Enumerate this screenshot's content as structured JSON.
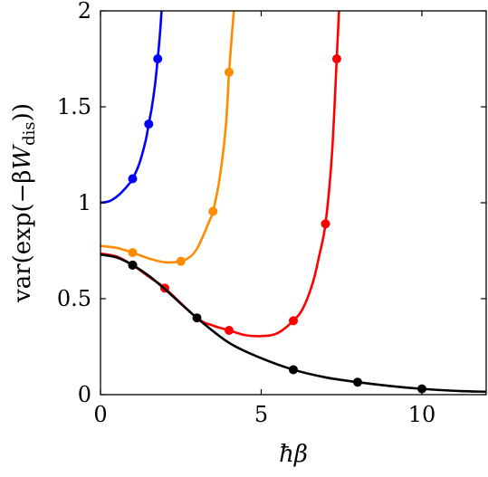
{
  "chart_data": {
    "type": "line",
    "xlabel": "ħβ",
    "ylabel": "var(exp(−βW_dis))",
    "ylabel_parts": {
      "prefix": "var(exp(−β",
      "var": "W",
      "sub": "dis",
      "suffix": "))"
    },
    "xlim": [
      0,
      12
    ],
    "ylim": [
      0,
      2
    ],
    "xticks": [
      0,
      5,
      10
    ],
    "xtick_labels": [
      "0",
      "5",
      "10"
    ],
    "yticks": [
      0,
      0.5,
      1,
      1.5,
      2
    ],
    "ytick_labels": [
      "0",
      "0.5",
      "1",
      "1.5",
      "2"
    ],
    "grid": false,
    "legend": "none",
    "series": [
      {
        "color": "#0000ff",
        "curve": [
          [
            0,
            1.0
          ],
          [
            0.3,
            1.01
          ],
          [
            0.6,
            1.045
          ],
          [
            0.9,
            1.1
          ],
          [
            1.0,
            1.125
          ],
          [
            1.2,
            1.2
          ],
          [
            1.4,
            1.32
          ],
          [
            1.5,
            1.41
          ],
          [
            1.6,
            1.5
          ],
          [
            1.7,
            1.62
          ],
          [
            1.78,
            1.75
          ],
          [
            1.85,
            1.88
          ],
          [
            1.9,
            2.0
          ]
        ],
        "points": [
          [
            1.0,
            1.125
          ],
          [
            1.5,
            1.41
          ],
          [
            1.78,
            1.75
          ]
        ]
      },
      {
        "color": "#ff8c00",
        "curve": [
          [
            0,
            0.775
          ],
          [
            0.5,
            0.765
          ],
          [
            1.0,
            0.74
          ],
          [
            1.5,
            0.71
          ],
          [
            2.0,
            0.69
          ],
          [
            2.5,
            0.695
          ],
          [
            2.8,
            0.72
          ],
          [
            3.0,
            0.76
          ],
          [
            3.2,
            0.83
          ],
          [
            3.4,
            0.91
          ],
          [
            3.5,
            0.955
          ],
          [
            3.7,
            1.12
          ],
          [
            3.9,
            1.4
          ],
          [
            4.0,
            1.68
          ],
          [
            4.1,
            1.9
          ],
          [
            4.15,
            2.0
          ]
        ],
        "points": [
          [
            1.0,
            0.74
          ],
          [
            2.5,
            0.695
          ],
          [
            3.5,
            0.955
          ],
          [
            4.0,
            1.68
          ]
        ]
      },
      {
        "color": "#ff0000",
        "curve": [
          [
            0,
            0.735
          ],
          [
            0.5,
            0.72
          ],
          [
            1.0,
            0.675
          ],
          [
            1.5,
            0.615
          ],
          [
            2.0,
            0.555
          ],
          [
            3.0,
            0.4
          ],
          [
            3.5,
            0.36
          ],
          [
            4.0,
            0.335
          ],
          [
            4.5,
            0.31
          ],
          [
            5.0,
            0.305
          ],
          [
            5.5,
            0.32
          ],
          [
            6.0,
            0.385
          ],
          [
            6.3,
            0.45
          ],
          [
            6.6,
            0.58
          ],
          [
            6.8,
            0.72
          ],
          [
            7.0,
            0.89
          ],
          [
            7.2,
            1.25
          ],
          [
            7.35,
            1.75
          ],
          [
            7.42,
            2.0
          ]
        ],
        "points": [
          [
            1.0,
            0.675
          ],
          [
            2.0,
            0.555
          ],
          [
            4.0,
            0.335
          ],
          [
            6.0,
            0.385
          ],
          [
            7.0,
            0.89
          ],
          [
            7.35,
            1.75
          ]
        ]
      },
      {
        "color": "#000000",
        "curve": [
          [
            0,
            0.73
          ],
          [
            0.5,
            0.715
          ],
          [
            1.0,
            0.675
          ],
          [
            1.5,
            0.62
          ],
          [
            2.0,
            0.55
          ],
          [
            3.0,
            0.4
          ],
          [
            4.0,
            0.27
          ],
          [
            5.0,
            0.19
          ],
          [
            6.0,
            0.13
          ],
          [
            7.0,
            0.09
          ],
          [
            8.0,
            0.065
          ],
          [
            9.0,
            0.045
          ],
          [
            10.0,
            0.03
          ],
          [
            11.0,
            0.02
          ],
          [
            12.0,
            0.015
          ]
        ],
        "points": [
          [
            1.0,
            0.675
          ],
          [
            3.0,
            0.4
          ],
          [
            6.0,
            0.13
          ],
          [
            8.0,
            0.065
          ],
          [
            10.0,
            0.03
          ]
        ]
      }
    ]
  }
}
